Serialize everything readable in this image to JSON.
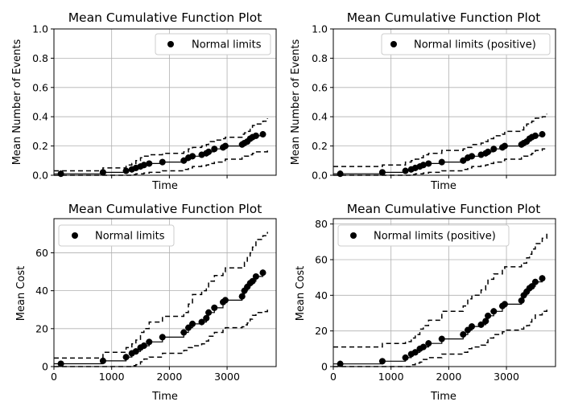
{
  "chart_data": [
    {
      "type": "line",
      "title": "Mean Cumulative Function Plot",
      "xlabel": "Time",
      "ylabel": "Mean Number of Events",
      "show_x_ticklabels": false,
      "xlim": [
        0,
        3850
      ],
      "ylim": [
        0,
        1.0
      ],
      "xticks": [
        1000,
        2000,
        3000
      ],
      "yticks": [
        0.0,
        0.2,
        0.4,
        0.6,
        0.8,
        1.0
      ],
      "ytick_labels": [
        "0.0",
        "0.2",
        "0.4",
        "0.6",
        "0.8",
        "1.0"
      ],
      "grid": true,
      "legend": "top-right",
      "legend_entries": [
        "Normal limits"
      ],
      "series": [
        {
          "name": "Normal limits",
          "x": [
            120,
            850,
            1250,
            1350,
            1420,
            1500,
            1560,
            1650,
            1880,
            2250,
            2330,
            2400,
            2560,
            2640,
            2680,
            2780,
            2930,
            2970,
            3260,
            3300,
            3350,
            3400,
            3440,
            3500,
            3620
          ],
          "y": [
            0.01,
            0.02,
            0.03,
            0.04,
            0.05,
            0.06,
            0.07,
            0.08,
            0.09,
            0.1,
            0.12,
            0.13,
            0.14,
            0.15,
            0.16,
            0.18,
            0.19,
            0.2,
            0.21,
            0.22,
            0.23,
            0.25,
            0.26,
            0.27,
            0.28
          ]
        }
      ],
      "bounds": {
        "x": [
          0,
          120,
          850,
          1250,
          1350,
          1420,
          1500,
          1560,
          1650,
          1880,
          2250,
          2330,
          2400,
          2560,
          2640,
          2680,
          2780,
          2930,
          2970,
          3260,
          3300,
          3350,
          3400,
          3440,
          3500,
          3620,
          3700
        ],
        "upper": [
          0.03,
          0.03,
          0.05,
          0.07,
          0.08,
          0.1,
          0.12,
          0.13,
          0.14,
          0.15,
          0.16,
          0.18,
          0.19,
          0.2,
          0.21,
          0.23,
          0.24,
          0.25,
          0.26,
          0.28,
          0.29,
          0.3,
          0.32,
          0.34,
          0.35,
          0.37,
          0.39
        ],
        "lower": [
          0.0,
          0.0,
          0.0,
          0.0,
          0.005,
          0.01,
          0.01,
          0.015,
          0.02,
          0.03,
          0.04,
          0.05,
          0.06,
          0.065,
          0.07,
          0.08,
          0.09,
          0.1,
          0.11,
          0.12,
          0.13,
          0.13,
          0.14,
          0.15,
          0.16,
          0.16,
          0.17
        ]
      }
    },
    {
      "type": "line",
      "title": "Mean Cumulative Function Plot",
      "xlabel": "Time",
      "ylabel": "Mean Number of Events",
      "show_x_ticklabels": false,
      "xlim": [
        0,
        3850
      ],
      "ylim": [
        0,
        1.0
      ],
      "xticks": [
        1000,
        2000,
        3000
      ],
      "yticks": [
        0.0,
        0.2,
        0.4,
        0.6,
        0.8,
        1.0
      ],
      "ytick_labels": [
        "0.0",
        "0.2",
        "0.4",
        "0.6",
        "0.8",
        "1.0"
      ],
      "grid": true,
      "legend": "top-right",
      "legend_entries": [
        "Normal limits (positive)"
      ],
      "series": [
        {
          "name": "Normal limits (positive)",
          "x": [
            120,
            850,
            1250,
            1350,
            1420,
            1500,
            1560,
            1650,
            1880,
            2250,
            2330,
            2400,
            2560,
            2640,
            2680,
            2780,
            2930,
            2970,
            3260,
            3300,
            3350,
            3400,
            3440,
            3500,
            3620
          ],
          "y": [
            0.01,
            0.02,
            0.03,
            0.04,
            0.05,
            0.06,
            0.07,
            0.08,
            0.09,
            0.1,
            0.12,
            0.13,
            0.14,
            0.15,
            0.16,
            0.18,
            0.19,
            0.2,
            0.21,
            0.22,
            0.23,
            0.25,
            0.26,
            0.27,
            0.28
          ]
        }
      ],
      "bounds": {
        "x": [
          0,
          120,
          850,
          1250,
          1350,
          1420,
          1500,
          1560,
          1650,
          1880,
          2250,
          2330,
          2400,
          2560,
          2640,
          2680,
          2780,
          2930,
          2970,
          3260,
          3300,
          3350,
          3400,
          3440,
          3500,
          3620,
          3700
        ],
        "upper": [
          0.06,
          0.06,
          0.07,
          0.09,
          0.1,
          0.11,
          0.12,
          0.14,
          0.15,
          0.17,
          0.18,
          0.19,
          0.21,
          0.22,
          0.23,
          0.25,
          0.27,
          0.28,
          0.3,
          0.31,
          0.33,
          0.35,
          0.36,
          0.37,
          0.39,
          0.4,
          0.42
        ],
        "lower": [
          0.0,
          0.0,
          0.0,
          0.0,
          0.005,
          0.01,
          0.01,
          0.015,
          0.02,
          0.03,
          0.04,
          0.05,
          0.06,
          0.065,
          0.07,
          0.08,
          0.09,
          0.1,
          0.11,
          0.12,
          0.13,
          0.13,
          0.14,
          0.15,
          0.17,
          0.18,
          0.19
        ]
      }
    },
    {
      "type": "line",
      "title": "Mean Cumulative Function Plot",
      "xlabel": "Time",
      "ylabel": "Mean Cost",
      "show_x_ticklabels": true,
      "xlim": [
        0,
        3850
      ],
      "ylim": [
        0,
        78
      ],
      "xticks": [
        0,
        1000,
        2000,
        3000
      ],
      "xtick_labels": [
        "0",
        "1000",
        "2000",
        "3000"
      ],
      "yticks": [
        0,
        20,
        40,
        60
      ],
      "ytick_labels": [
        "0",
        "20",
        "40",
        "60"
      ],
      "grid": true,
      "legend": "top-left",
      "legend_entries": [
        "Normal limits"
      ],
      "series": [
        {
          "name": "Normal limits",
          "x": [
            120,
            850,
            1250,
            1350,
            1420,
            1500,
            1560,
            1650,
            1880,
            2250,
            2330,
            2400,
            2560,
            2640,
            2680,
            2780,
            2930,
            2970,
            3260,
            3300,
            3350,
            3400,
            3440,
            3500,
            3620
          ],
          "y": [
            1.5,
            3,
            5,
            7,
            8,
            10,
            11,
            13,
            15.5,
            18,
            20.5,
            22.5,
            23.5,
            25.5,
            28.5,
            31,
            34,
            35,
            37,
            40,
            42,
            44,
            45,
            47.5,
            49.5
          ]
        }
      ],
      "bounds": {
        "x": [
          0,
          120,
          850,
          1250,
          1350,
          1420,
          1500,
          1560,
          1650,
          1880,
          2250,
          2330,
          2400,
          2560,
          2640,
          2680,
          2780,
          2930,
          2970,
          3260,
          3300,
          3350,
          3400,
          3440,
          3500,
          3620,
          3700
        ],
        "upper": [
          4.5,
          4.5,
          7.5,
          10,
          12,
          14,
          18,
          20,
          23.5,
          26.5,
          28.5,
          33,
          38,
          40,
          42,
          45,
          48,
          50,
          52,
          52,
          55,
          58,
          60,
          63,
          67,
          69,
          71
        ],
        "lower": [
          0,
          0,
          0,
          0,
          0.5,
          1,
          2.5,
          4,
          5,
          7,
          8.5,
          10,
          11,
          12,
          13.5,
          16,
          18,
          19.5,
          20.5,
          21,
          22,
          23,
          25,
          27,
          28.5,
          29,
          30
        ]
      }
    },
    {
      "type": "line",
      "title": "Mean Cumulative Function Plot",
      "xlabel": "Time",
      "ylabel": "Mean Cost",
      "show_x_ticklabels": true,
      "xlim": [
        0,
        3850
      ],
      "ylim": [
        0,
        83
      ],
      "xticks": [
        0,
        1000,
        2000,
        3000
      ],
      "xtick_labels": [
        "0",
        "1000",
        "2000",
        "3000"
      ],
      "yticks": [
        0,
        20,
        40,
        60,
        80
      ],
      "ytick_labels": [
        "0",
        "20",
        "40",
        "60",
        "80"
      ],
      "grid": true,
      "legend": "top-left",
      "legend_entries": [
        "Normal limits (positive)"
      ],
      "series": [
        {
          "name": "Normal limits (positive)",
          "x": [
            120,
            850,
            1250,
            1350,
            1420,
            1500,
            1560,
            1650,
            1880,
            2250,
            2330,
            2400,
            2560,
            2640,
            2680,
            2780,
            2930,
            2970,
            3260,
            3300,
            3350,
            3400,
            3440,
            3500,
            3620
          ],
          "y": [
            1.5,
            3,
            5,
            7,
            8,
            10,
            11,
            13,
            15.5,
            18,
            20.5,
            22.5,
            23.5,
            25.5,
            28.5,
            31,
            34,
            35,
            37,
            40,
            42,
            44,
            45,
            47.5,
            49.5
          ]
        }
      ],
      "bounds": {
        "x": [
          0,
          120,
          850,
          1250,
          1350,
          1420,
          1500,
          1560,
          1650,
          1880,
          2250,
          2330,
          2400,
          2560,
          2640,
          2680,
          2780,
          2930,
          2970,
          3260,
          3300,
          3350,
          3400,
          3440,
          3500,
          3620,
          3700
        ],
        "upper": [
          11,
          11,
          13,
          14,
          16,
          18,
          21,
          23,
          26,
          31,
          34,
          38,
          40,
          43,
          46,
          49,
          52,
          55,
          56,
          57,
          58,
          61,
          63,
          66,
          69,
          72,
          75
        ],
        "lower": [
          0,
          0,
          0,
          0,
          1,
          2,
          2.5,
          4,
          5,
          7,
          8,
          10,
          11,
          12,
          13.5,
          16,
          18,
          19.5,
          20.5,
          21,
          22,
          23,
          25,
          27,
          29,
          31,
          33
        ]
      }
    }
  ]
}
